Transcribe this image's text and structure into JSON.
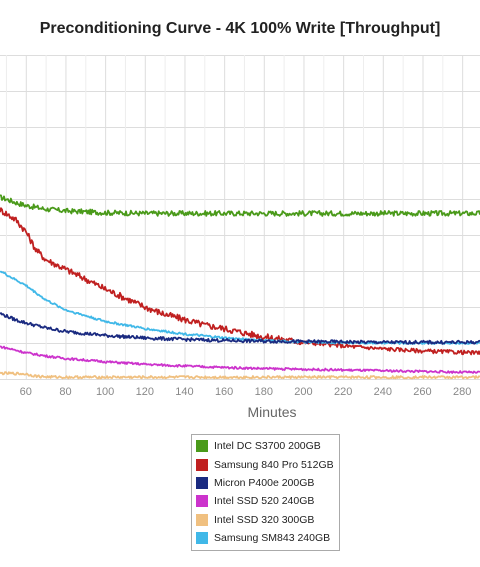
{
  "chart_data": {
    "type": "line",
    "title": "Preconditioning Curve - 4K 100% Write [Throughput]",
    "xlabel": "Minutes",
    "ylabel": "",
    "x_ticks": [
      60,
      80,
      100,
      120,
      140,
      160,
      180,
      200,
      220,
      240,
      260,
      280
    ],
    "xlim": [
      47,
      289
    ],
    "ylim": [
      0,
      9
    ],
    "grid": true,
    "legend_position": "bottom-center",
    "series": [
      {
        "name": "Intel DC S3700 200GB",
        "color": "#4a9a1a",
        "x": [
          47,
          50,
          55,
          60,
          70,
          80,
          100,
          120,
          140,
          160,
          180,
          200,
          220,
          240,
          260,
          280,
          289
        ],
        "values": [
          5.05,
          5.0,
          4.9,
          4.82,
          4.72,
          4.67,
          4.62,
          4.6,
          4.6,
          4.6,
          4.6,
          4.6,
          4.6,
          4.6,
          4.6,
          4.6,
          4.6
        ]
      },
      {
        "name": "Samsung 840 Pro 512GB",
        "color": "#c02020",
        "x": [
          47,
          50,
          55,
          60,
          65,
          70,
          80,
          90,
          100,
          110,
          120,
          130,
          140,
          150,
          160,
          170,
          180,
          200,
          220,
          240,
          260,
          280,
          289
        ],
        "values": [
          4.7,
          4.6,
          4.42,
          4.1,
          3.6,
          3.32,
          3.05,
          2.78,
          2.5,
          2.25,
          2.0,
          1.8,
          1.65,
          1.5,
          1.4,
          1.28,
          1.17,
          1.02,
          0.92,
          0.84,
          0.78,
          0.74,
          0.72
        ]
      },
      {
        "name": "Micron P400e 200GB",
        "color": "#1a2a80",
        "x": [
          47,
          55,
          60,
          70,
          80,
          100,
          120,
          140,
          160,
          180,
          200,
          220,
          240,
          260,
          280,
          289
        ],
        "values": [
          1.82,
          1.64,
          1.56,
          1.42,
          1.32,
          1.21,
          1.14,
          1.1,
          1.07,
          1.05,
          1.04,
          1.03,
          1.02,
          1.02,
          1.02,
          1.02
        ]
      },
      {
        "name": "Intel SSD 520 240GB",
        "color": "#cc33cc",
        "x": [
          47,
          55,
          60,
          70,
          80,
          100,
          120,
          140,
          160,
          180,
          200,
          220,
          240,
          260,
          280,
          289
        ],
        "values": [
          0.9,
          0.8,
          0.73,
          0.64,
          0.57,
          0.48,
          0.41,
          0.36,
          0.32,
          0.29,
          0.27,
          0.25,
          0.23,
          0.21,
          0.19,
          0.18
        ]
      },
      {
        "name": "Intel SSD 320 300GB",
        "color": "#f0c080",
        "x": [
          47,
          55,
          60,
          65,
          70,
          80,
          100,
          120,
          140,
          160,
          180,
          200,
          220,
          240,
          260,
          280,
          289
        ],
        "values": [
          0.16,
          0.15,
          0.14,
          0.08,
          0.06,
          0.05,
          0.05,
          0.05,
          0.05,
          0.05,
          0.05,
          0.05,
          0.05,
          0.05,
          0.05,
          0.05,
          0.05
        ]
      },
      {
        "name": "Samsung SM843 240GB",
        "color": "#40b8e8",
        "x": [
          47,
          55,
          60,
          70,
          80,
          100,
          120,
          140,
          160,
          180,
          200,
          220,
          240,
          260,
          280,
          289
        ],
        "values": [
          3.0,
          2.75,
          2.6,
          2.2,
          1.92,
          1.6,
          1.4,
          1.25,
          1.14,
          1.07,
          1.03,
          1.01,
          1.0,
          1.0,
          1.0,
          1.0
        ]
      }
    ]
  }
}
